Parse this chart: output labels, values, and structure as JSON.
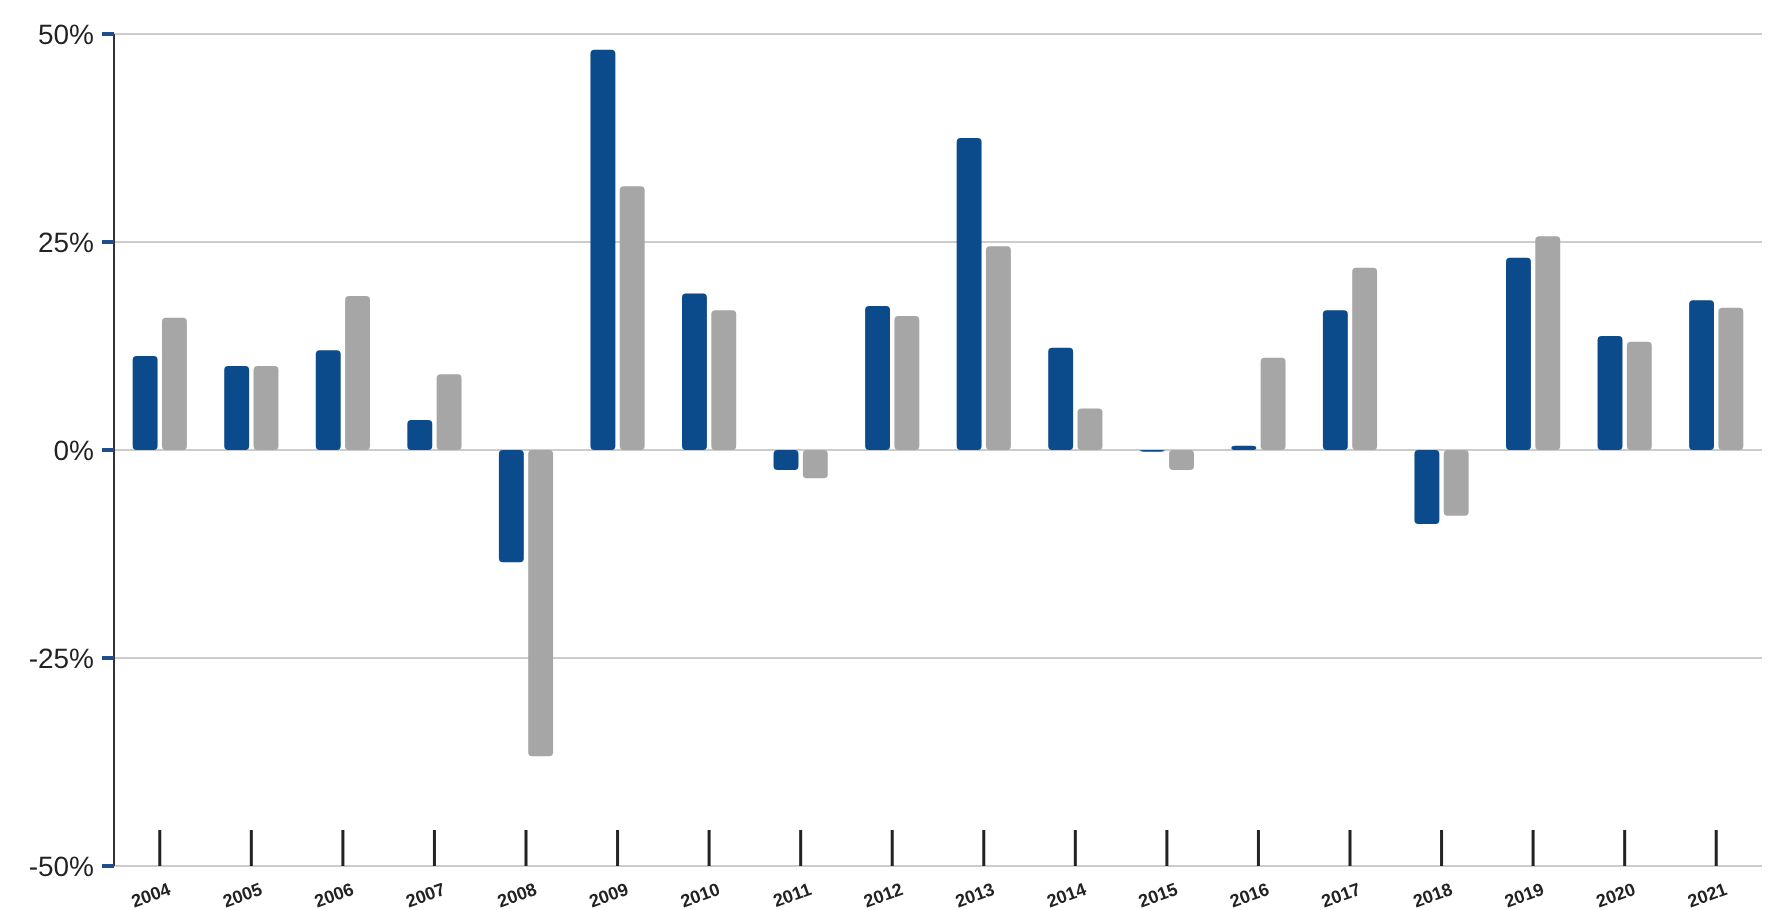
{
  "chart_data": {
    "type": "bar",
    "categories": [
      "2004",
      "2005",
      "2006",
      "2007",
      "2008",
      "2009",
      "2010",
      "2011",
      "2012",
      "2013",
      "2014",
      "2015",
      "2016",
      "2017",
      "2018",
      "2019",
      "2020",
      "2021"
    ],
    "series": [
      {
        "color": "#0b4a8b",
        "values": [
          11.3,
          10.1,
          12.0,
          3.6,
          -13.5,
          48.1,
          18.8,
          -2.4,
          17.3,
          37.5,
          12.3,
          -0.2,
          0.5,
          16.8,
          -8.9,
          23.1,
          13.7,
          18.0
        ]
      },
      {
        "color": "#a6a6a6",
        "values": [
          15.9,
          10.1,
          18.5,
          9.1,
          -36.8,
          31.7,
          16.8,
          -3.4,
          16.1,
          24.5,
          5.0,
          -2.4,
          11.1,
          21.9,
          -7.9,
          25.7,
          13.0,
          17.1
        ]
      }
    ],
    "ylim": [
      -50,
      50
    ],
    "yticks": [
      {
        "value": -50,
        "label": "-50%"
      },
      {
        "value": -25,
        "label": "-25%"
      },
      {
        "value": 0,
        "label": "0%"
      },
      {
        "value": 25,
        "label": "25%"
      },
      {
        "value": 50,
        "label": "50%"
      }
    ],
    "grid": "y"
  }
}
